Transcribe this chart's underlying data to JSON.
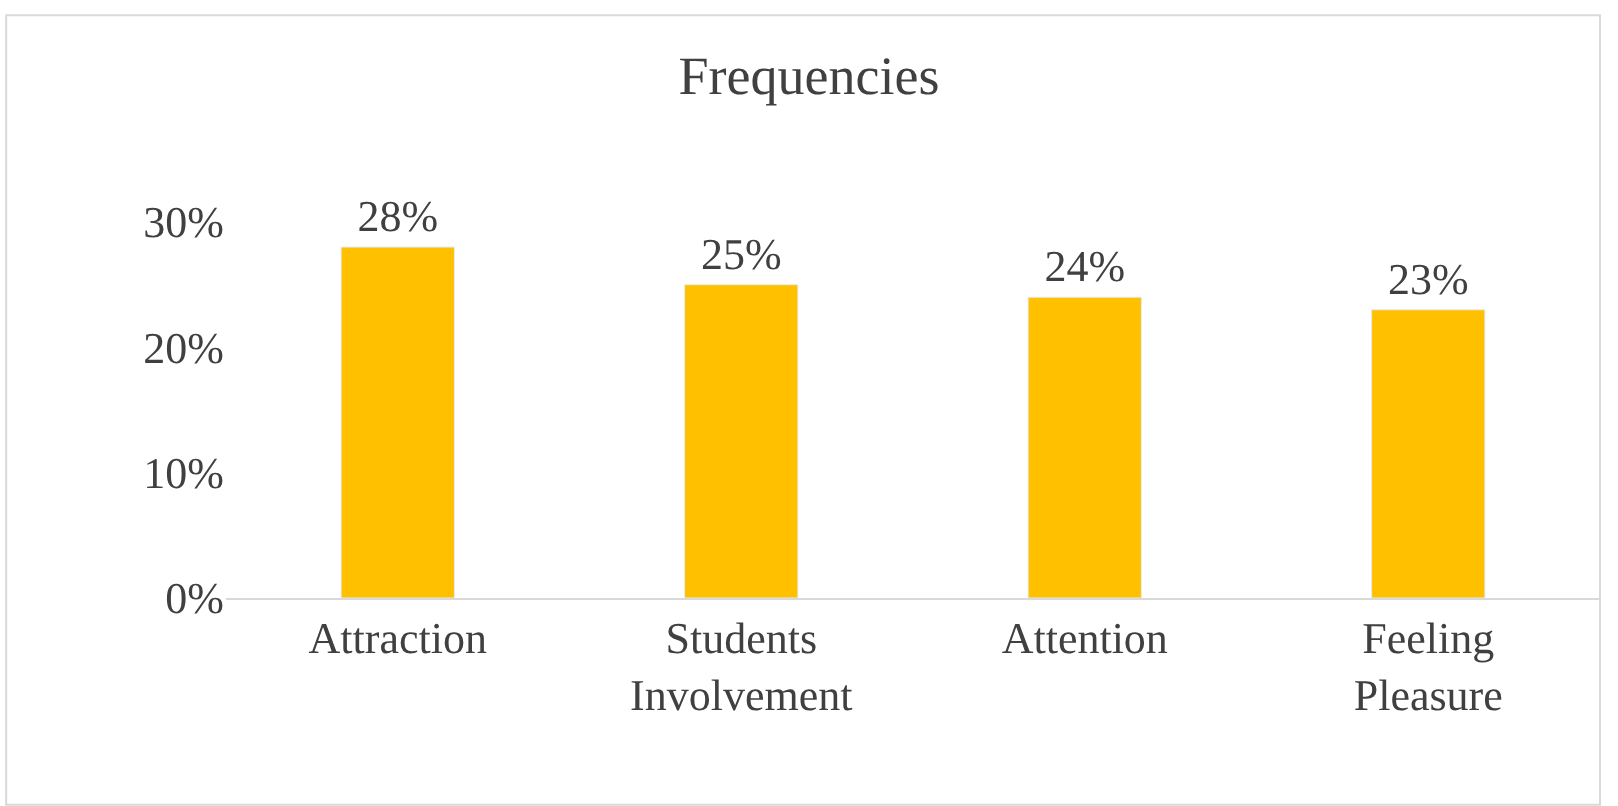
{
  "chart_data": {
    "type": "bar",
    "title": "Frequencies",
    "categories": [
      "Attraction",
      "Students Involvement",
      "Attention",
      "Feeling Pleasure"
    ],
    "values": [
      28,
      25,
      24,
      23
    ],
    "color": "#ffc000",
    "value_labels": [
      "28%",
      "25%",
      "24%",
      "23%"
    ],
    "ylim": [
      0,
      30
    ],
    "yticks": [
      {
        "value": 0,
        "label": "0%"
      },
      {
        "value": 10,
        "label": "10%"
      },
      {
        "value": 20,
        "label": "20%"
      },
      {
        "value": 30,
        "label": "30%"
      }
    ],
    "grid": false,
    "legend": false
  }
}
